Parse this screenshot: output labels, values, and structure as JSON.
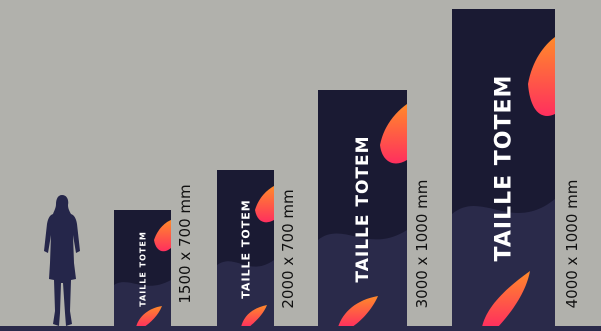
{
  "colors": {
    "background": "#b1b1ac",
    "panel": "#1a1a33",
    "panel_light": "#2a2a4a",
    "accent_orange": "#ff7a2f",
    "accent_pink": "#ff3a5a",
    "person": "#25264a"
  },
  "scale_figure": "person-silhouette",
  "totems": [
    {
      "title": "TAILLE TOTEM",
      "dimension": "1500 x 700 mm"
    },
    {
      "title": "TAILLE TOTEM",
      "dimension": "2000 x 700 mm"
    },
    {
      "title": "TAILLE TOTEM",
      "dimension": "3000 x 1000 mm"
    },
    {
      "title": "TAILLE TOTEM",
      "dimension": "4000 x 1000 mm"
    }
  ]
}
